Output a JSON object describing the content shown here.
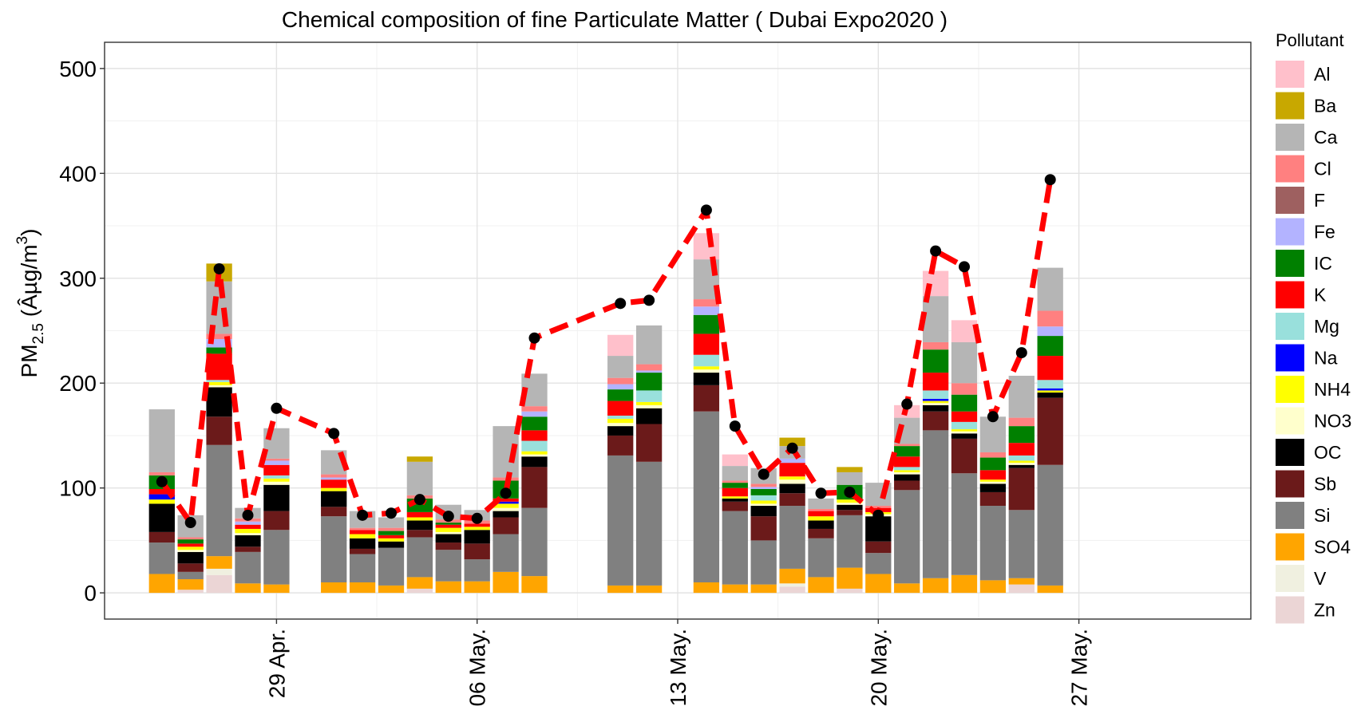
{
  "chart_data": {
    "type": "bar",
    "stacked": true,
    "title": "Chemical composition of fine Particulate Matter ( Dubai Expo2020 )",
    "ylabel": "PM",
    "ylabel_subscript": "2.5",
    "ylabel_unit_open": " (Âµg/m",
    "ylabel_unit_sup": "3",
    "ylabel_unit_close": ")",
    "ylim": [
      -25,
      525
    ],
    "xlim": [
      -6,
      34
    ],
    "yticks": [
      0,
      100,
      200,
      300,
      400,
      500
    ],
    "xticks": [
      {
        "x": 0,
        "label": "29 Apr."
      },
      {
        "x": 7,
        "label": "06 May."
      },
      {
        "x": 14,
        "label": "13 May."
      },
      {
        "x": 21,
        "label": "20 May."
      },
      {
        "x": 28,
        "label": "27 May."
      }
    ],
    "grid": true,
    "legend": {
      "title": "Pollutant",
      "position": "right",
      "items": [
        {
          "name": "Al",
          "color": "#FFC0CB"
        },
        {
          "name": "Ba",
          "color": "#C8A800"
        },
        {
          "name": "Ca",
          "color": "#B5B5B5"
        },
        {
          "name": "Cl",
          "color": "#FF8080"
        },
        {
          "name": "F",
          "color": "#9E6060"
        },
        {
          "name": "Fe",
          "color": "#B3B3FF"
        },
        {
          "name": "IC",
          "color": "#008000"
        },
        {
          "name": "K",
          "color": "#FF0000"
        },
        {
          "name": "Mg",
          "color": "#99E0DC"
        },
        {
          "name": "Na",
          "color": "#0000FF"
        },
        {
          "name": "NH4",
          "color": "#FFFF00"
        },
        {
          "name": "NO3",
          "color": "#FFFFCC"
        },
        {
          "name": "OC",
          "color": "#000000"
        },
        {
          "name": "Sb",
          "color": "#6B1A1A"
        },
        {
          "name": "Si",
          "color": "#808080"
        },
        {
          "name": "SO4",
          "color": "#FFA500"
        },
        {
          "name": "V",
          "color": "#F0F0E0"
        },
        {
          "name": "Zn",
          "color": "#EBD5D5"
        }
      ]
    },
    "stack_order_bottom_to_top": [
      "Zn",
      "V",
      "SO4",
      "Si",
      "Sb",
      "OC",
      "NO3",
      "NH4",
      "Na",
      "Mg",
      "K",
      "IC",
      "Fe",
      "F",
      "Cl",
      "Ca",
      "Ba",
      "Al"
    ],
    "bars": [
      {
        "x": -4,
        "values": {
          "SO4": 18,
          "Si": 30,
          "Sb": 10,
          "OC": 27,
          "NH4": 4,
          "Na": 5,
          "K": 5,
          "IC": 13,
          "Cl": 3,
          "Ca": 60
        }
      },
      {
        "x": -3,
        "values": {
          "Zn": 3,
          "SO4": 10,
          "Si": 7,
          "Sb": 8,
          "OC": 11,
          "NO3": 2,
          "NH4": 3,
          "K": 3,
          "IC": 4,
          "Cl": 2,
          "Ca": 21
        }
      },
      {
        "x": -2,
        "values": {
          "Zn": 17,
          "V": 6,
          "SO4": 12,
          "Si": 106,
          "Sb": 27,
          "OC": 28,
          "NO3": 2,
          "NH4": 3,
          "K": 25,
          "IC": 6,
          "Mg": 2,
          "Fe": 8,
          "Cl": 5,
          "Ca": 50,
          "Ba": 17
        }
      },
      {
        "x": -1,
        "values": {
          "SO4": 9,
          "Si": 30,
          "Sb": 5,
          "OC": 11,
          "NO3": 2,
          "NH4": 4,
          "K": 4,
          "Fe": 3,
          "Cl": 3,
          "Ca": 10
        }
      },
      {
        "x": 0,
        "values": {
          "SO4": 8,
          "Si": 52,
          "Sb": 18,
          "OC": 25,
          "NO3": 3,
          "NH4": 3,
          "Mg": 3,
          "K": 10,
          "Fe": 4,
          "Cl": 2,
          "Ca": 29
        }
      },
      {
        "x": 2,
        "values": {
          "SO4": 10,
          "Si": 63,
          "Sb": 9,
          "OC": 15,
          "NH4": 3,
          "K": 8,
          "Fe": 2,
          "Cl": 3,
          "Ca": 23
        }
      },
      {
        "x": 3,
        "values": {
          "SO4": 10,
          "Si": 27,
          "Sb": 5,
          "OC": 10,
          "NH4": 4,
          "K": 4,
          "Cl": 2,
          "Ca": 16
        }
      },
      {
        "x": 4,
        "values": {
          "SO4": 7,
          "Si": 36,
          "OC": 6,
          "NH4": 3,
          "K": 3,
          "IC": 4,
          "Cl": 3,
          "Ca": 10
        }
      },
      {
        "x": 5,
        "values": {
          "Zn": 4,
          "SO4": 11,
          "Si": 38,
          "Sb": 7,
          "OC": 9,
          "NH4": 3,
          "K": 5,
          "IC": 13,
          "Cl": 3,
          "Ca": 32,
          "Ba": 5
        }
      },
      {
        "x": 6,
        "values": {
          "SO4": 11,
          "Si": 30,
          "Sb": 7,
          "OC": 8,
          "NO3": 2,
          "NH4": 4,
          "K": 3,
          "IC": 2,
          "Cl": 3,
          "Ca": 14
        }
      },
      {
        "x": 7,
        "values": {
          "SO4": 11,
          "Si": 21,
          "Sb": 15,
          "OC": 13,
          "NH4": 3,
          "K": 3,
          "Cl": 3,
          "Ca": 10
        }
      },
      {
        "x": 8,
        "values": {
          "SO4": 20,
          "Si": 36,
          "Sb": 16,
          "OC": 6,
          "NO3": 3,
          "NH4": 4,
          "Na": 2,
          "K": 3,
          "IC": 17,
          "Cl": 3,
          "Ca": 49
        }
      },
      {
        "x": 9,
        "values": {
          "SO4": 16,
          "Si": 65,
          "Sb": 39,
          "OC": 10,
          "NO3": 2,
          "NH4": 3,
          "Mg": 10,
          "K": 10,
          "IC": 13,
          "Fe": 5,
          "Cl": 5,
          "Ca": 31
        }
      },
      {
        "x": 12,
        "values": {
          "SO4": 7,
          "Si": 124,
          "Sb": 19,
          "OC": 9,
          "NO3": 3,
          "NH4": 4,
          "Mg": 3,
          "K": 14,
          "IC": 11,
          "Fe": 5,
          "Cl": 6,
          "Ca": 21,
          "Al": 20
        }
      },
      {
        "x": 13,
        "values": {
          "SO4": 7,
          "Si": 118,
          "Sb": 36,
          "OC": 15,
          "NO3": 3,
          "NH4": 3,
          "Mg": 11,
          "IC": 17,
          "Fe": 2,
          "Cl": 6,
          "Ca": 37
        }
      },
      {
        "x": 15,
        "values": {
          "SO4": 10,
          "Si": 163,
          "Sb": 25,
          "OC": 12,
          "NO3": 3,
          "NH4": 3,
          "Mg": 11,
          "K": 20,
          "IC": 18,
          "Fe": 8,
          "Cl": 7,
          "Ca": 38,
          "Al": 25
        }
      },
      {
        "x": 16,
        "values": {
          "SO4": 8,
          "Si": 70,
          "Sb": 9,
          "OC": 3,
          "NH4": 2,
          "K": 8,
          "IC": 5,
          "Cl": 2,
          "Ca": 14,
          "Al": 11
        }
      },
      {
        "x": 17,
        "values": {
          "SO4": 8,
          "Si": 42,
          "Sb": 23,
          "OC": 10,
          "NO3": 2,
          "NH4": 3,
          "Mg": 5,
          "IC": 6,
          "Fe": 2,
          "Cl": 3,
          "Ca": 15
        }
      },
      {
        "x": 18,
        "values": {
          "Zn": 6,
          "V": 3,
          "SO4": 14,
          "Si": 60,
          "Sb": 12,
          "OC": 9,
          "NO3": 4,
          "NH4": 3,
          "K": 13,
          "Fe": 4,
          "Ca": 12,
          "Ba": 8
        }
      },
      {
        "x": 19,
        "values": {
          "SO4": 15,
          "Si": 37,
          "Sb": 9,
          "OC": 8,
          "NH4": 4,
          "K": 5,
          "Cl": 2,
          "Ca": 10
        }
      },
      {
        "x": 20,
        "values": {
          "Zn": 4,
          "SO4": 20,
          "Si": 50,
          "Sb": 5,
          "OC": 5,
          "NO3": 2,
          "NH4": 3,
          "IC": 14,
          "Ca": 12,
          "Ba": 5
        }
      },
      {
        "x": 21,
        "values": {
          "SO4": 18,
          "Si": 20,
          "Sb": 11,
          "OC": 24,
          "NO3": 2,
          "NH4": 2,
          "K": 4,
          "Cl": 2,
          "Ca": 22
        }
      },
      {
        "x": 22,
        "values": {
          "SO4": 9,
          "Si": 89,
          "Sb": 9,
          "OC": 6,
          "NO3": 2,
          "NH4": 2,
          "Mg": 3,
          "K": 10,
          "IC": 10,
          "Cl": 2,
          "Ca": 25,
          "Al": 12
        }
      },
      {
        "x": 23,
        "values": {
          "SO4": 14,
          "Si": 141,
          "Sb": 18,
          "OC": 6,
          "NO3": 2,
          "NH4": 2,
          "Na": 2,
          "Mg": 8,
          "K": 17,
          "IC": 22,
          "Cl": 7,
          "Ca": 44,
          "Al": 24
        }
      },
      {
        "x": 24,
        "values": {
          "SO4": 17,
          "Si": 97,
          "Sb": 33,
          "OC": 5,
          "NO3": 2,
          "NH4": 2,
          "Mg": 7,
          "K": 10,
          "IC": 16,
          "Cl": 11,
          "Ca": 39,
          "Al": 21
        }
      },
      {
        "x": 25,
        "values": {
          "SO4": 12,
          "Si": 71,
          "Sb": 13,
          "OC": 8,
          "NO3": 2,
          "NH4": 2,
          "K": 9,
          "IC": 12,
          "Cl": 5,
          "Ca": 34
        }
      },
      {
        "x": 26,
        "values": {
          "Zn": 8,
          "SO4": 6,
          "Si": 65,
          "Sb": 40,
          "OC": 3,
          "NO3": 2,
          "NH4": 2,
          "Mg": 5,
          "K": 12,
          "IC": 16,
          "Cl": 8,
          "Ca": 40
        }
      },
      {
        "x": 27,
        "values": {
          "SO4": 7,
          "Si": 115,
          "Sb": 64,
          "OC": 5,
          "NH4": 2,
          "Na": 2,
          "Mg": 8,
          "K": 23,
          "IC": 19,
          "Fe": 9,
          "Cl": 15,
          "Ca": 41
        }
      }
    ],
    "total_series": {
      "style": "dashed-red",
      "points": [
        {
          "x": -4,
          "y": 106
        },
        {
          "x": -3,
          "y": 67
        },
        {
          "x": -2,
          "y": 309
        },
        {
          "x": -1,
          "y": 74
        },
        {
          "x": 0,
          "y": 176
        },
        {
          "x": 2,
          "y": 152
        },
        {
          "x": 3,
          "y": 74
        },
        {
          "x": 4,
          "y": 76
        },
        {
          "x": 5,
          "y": 89
        },
        {
          "x": 6,
          "y": 73
        },
        {
          "x": 7,
          "y": 71
        },
        {
          "x": 8,
          "y": 95
        },
        {
          "x": 9,
          "y": 243
        },
        {
          "x": 12,
          "y": 276
        },
        {
          "x": 13,
          "y": 279
        },
        {
          "x": 15,
          "y": 365
        },
        {
          "x": 16,
          "y": 159
        },
        {
          "x": 17,
          "y": 113
        },
        {
          "x": 18,
          "y": 138
        },
        {
          "x": 19,
          "y": 95
        },
        {
          "x": 20,
          "y": 96
        },
        {
          "x": 21,
          "y": 74
        },
        {
          "x": 22,
          "y": 180
        },
        {
          "x": 23,
          "y": 326
        },
        {
          "x": 24,
          "y": 311
        },
        {
          "x": 25,
          "y": 168
        },
        {
          "x": 26,
          "y": 229
        },
        {
          "x": 27,
          "y": 394
        }
      ]
    }
  }
}
